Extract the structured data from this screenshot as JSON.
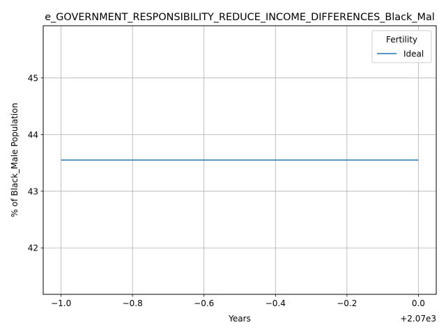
{
  "chart_data": {
    "type": "line",
    "title": "e_GOVERNMENT_RESPONSIBILITY_REDUCE_INCOME_DIFFERENCES_Black_Mal",
    "xlabel": "Years",
    "ylabel": "% of Black_Male Population",
    "x_offset_label": "+2.07e3",
    "xlim": [
      -1.05,
      0.05
    ],
    "ylim": [
      41.18,
      45.92
    ],
    "x_ticks": [
      -1.0,
      -0.8,
      -0.6,
      -0.4,
      -0.2,
      0.0
    ],
    "x_tick_labels": [
      "−1.0",
      "−0.8",
      "−0.6",
      "−0.4",
      "−0.2",
      "0.0"
    ],
    "y_ticks": [
      42,
      43,
      44,
      45
    ],
    "y_tick_labels": [
      "42",
      "43",
      "44",
      "45"
    ],
    "grid": true,
    "legend": {
      "title": "Fertility",
      "position": "top-right"
    },
    "series": [
      {
        "name": "Ideal",
        "color": "#1f77b4",
        "x": [
          -1.0,
          0.0
        ],
        "y": [
          43.55,
          43.55
        ]
      }
    ]
  }
}
